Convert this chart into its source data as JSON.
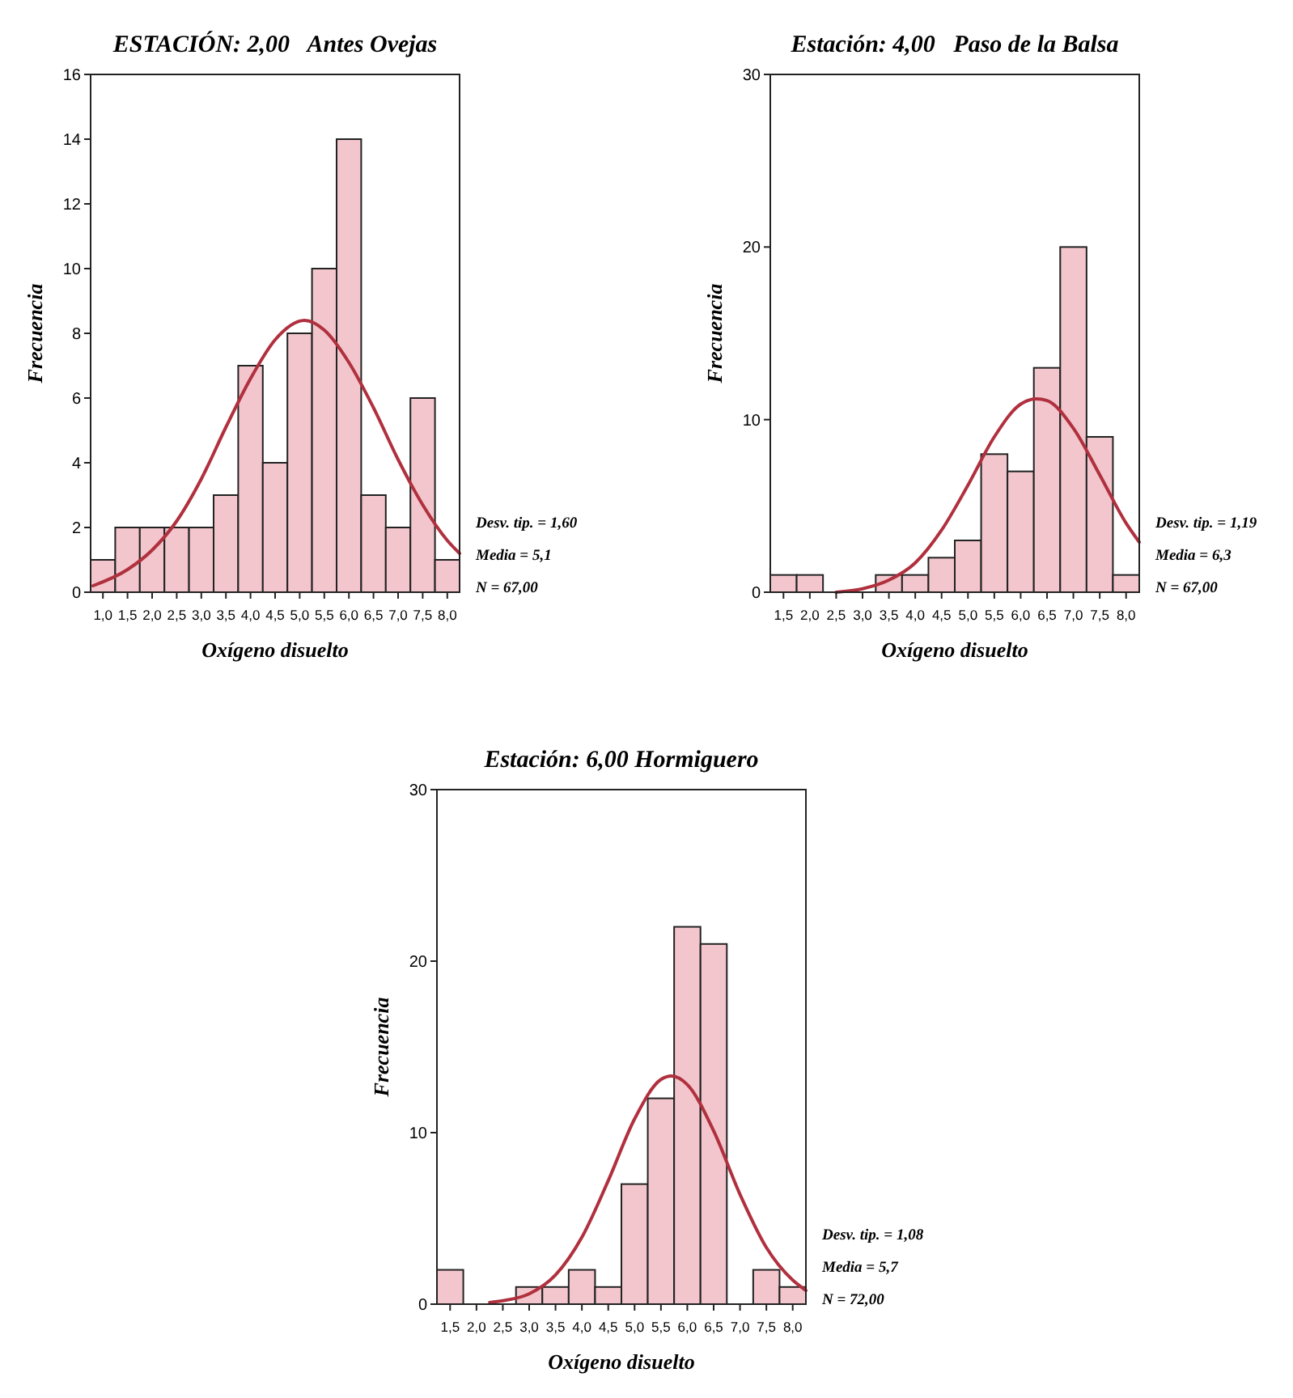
{
  "chart_data": [
    {
      "type": "histogram",
      "title": "ESTACIÓN: 2,00   Antes Ovejas",
      "xlabel": "Oxígeno disuelto",
      "ylabel": "Frecuencia",
      "bins": [
        0.75,
        1.25,
        1.75,
        2.25,
        2.75,
        3.25,
        3.75,
        4.25,
        4.75,
        5.25,
        5.75,
        6.25,
        6.75,
        7.25,
        7.75,
        8.25
      ],
      "series": [
        {
          "type": "histogram",
          "color": "#f2c6cc",
          "values": [
            1,
            2,
            2,
            2,
            2,
            3,
            7,
            4,
            8,
            10,
            14,
            3,
            2,
            6,
            1
          ]
        },
        {
          "type": "line",
          "color": "#b0303e",
          "x": [
            0.8,
            1.5,
            2.0,
            2.5,
            3.0,
            3.5,
            4.0,
            4.5,
            5.1,
            5.5,
            6.0,
            6.5,
            7.0,
            7.5,
            8.0,
            8.25
          ],
          "values": [
            0.2,
            0.7,
            1.3,
            2.2,
            3.5,
            5.1,
            6.6,
            7.8,
            8.4,
            8.1,
            7.1,
            5.7,
            4.1,
            2.7,
            1.6,
            1.2
          ]
        }
      ],
      "xlim": [
        0.75,
        8.25
      ],
      "xticks": [
        {
          "value": 1,
          "label": "1,0"
        },
        {
          "value": 1.5,
          "label": "1,5"
        },
        {
          "value": 2,
          "label": "2,0"
        },
        {
          "value": 2.5,
          "label": "2,5"
        },
        {
          "value": 3,
          "label": "3,0"
        },
        {
          "value": 3.5,
          "label": "3,5"
        },
        {
          "value": 4,
          "label": "4,0"
        },
        {
          "value": 4.5,
          "label": "4,5"
        },
        {
          "value": 5,
          "label": "5,0"
        },
        {
          "value": 5.5,
          "label": "5,5"
        },
        {
          "value": 6,
          "label": "6,0"
        },
        {
          "value": 6.5,
          "label": "6,5"
        },
        {
          "value": 7,
          "label": "7,0"
        },
        {
          "value": 7.5,
          "label": "7,5"
        },
        {
          "value": 8,
          "label": "8,0"
        }
      ],
      "ylim": [
        0,
        16
      ],
      "yticks": [
        0,
        2,
        4,
        6,
        8,
        10,
        12,
        14,
        16
      ],
      "annotations": [
        "Desv. tip. = 1,60",
        "Media = 5,1",
        "N = 67,00"
      ]
    },
    {
      "type": "histogram",
      "title": "Estación: 4,00   Paso de la Balsa",
      "xlabel": "Oxígeno disuelto",
      "ylabel": "Frecuencia",
      "bins": [
        1.25,
        1.75,
        2.25,
        2.75,
        3.25,
        3.75,
        4.25,
        4.75,
        5.25,
        5.75,
        6.25,
        6.75,
        7.25,
        7.75,
        8.25
      ],
      "series": [
        {
          "type": "histogram",
          "color": "#f2c6cc",
          "values": [
            1,
            1,
            0,
            0,
            1,
            1,
            2,
            3,
            8,
            7,
            13,
            20,
            9,
            1
          ]
        },
        {
          "type": "line",
          "color": "#b0303e",
          "x": [
            2.5,
            3.0,
            3.5,
            4.0,
            4.5,
            5.0,
            5.5,
            6.0,
            6.3,
            6.5,
            7.0,
            7.5,
            8.0,
            8.25
          ],
          "values": [
            0,
            0.2,
            0.7,
            1.7,
            3.6,
            6.2,
            9,
            10.9,
            11.2,
            11.1,
            9.5,
            6.8,
            4,
            2.9
          ]
        }
      ],
      "xlim": [
        1.25,
        8.25
      ],
      "xticks": [
        {
          "value": 1.5,
          "label": "1,5"
        },
        {
          "value": 2,
          "label": "2,0"
        },
        {
          "value": 2.5,
          "label": "2,5"
        },
        {
          "value": 3,
          "label": "3,0"
        },
        {
          "value": 3.5,
          "label": "3,5"
        },
        {
          "value": 4,
          "label": "4,0"
        },
        {
          "value": 4.5,
          "label": "4,5"
        },
        {
          "value": 5,
          "label": "5,0"
        },
        {
          "value": 5.5,
          "label": "5,5"
        },
        {
          "value": 6,
          "label": "6,0"
        },
        {
          "value": 6.5,
          "label": "6,5"
        },
        {
          "value": 7,
          "label": "7,0"
        },
        {
          "value": 7.5,
          "label": "7,5"
        },
        {
          "value": 8,
          "label": "8,0"
        }
      ],
      "ylim": [
        0,
        30
      ],
      "yticks": [
        0,
        10,
        20,
        30
      ],
      "annotations": [
        "Desv. tip. = 1,19",
        "Media = 6,3",
        "N = 67,00"
      ]
    },
    {
      "type": "histogram",
      "title": "Estación: 6,00 Hormiguero",
      "xlabel": "Oxígeno disuelto",
      "ylabel": "Frecuencia",
      "bins": [
        1.25,
        1.75,
        2.25,
        2.75,
        3.25,
        3.75,
        4.25,
        4.75,
        5.25,
        5.75,
        6.25,
        6.75,
        7.25,
        7.75,
        8.25
      ],
      "series": [
        {
          "type": "histogram",
          "color": "#f2c6cc",
          "values": [
            2,
            0,
            0,
            1,
            1,
            2,
            1,
            7,
            12,
            22,
            21,
            0,
            2,
            1
          ]
        },
        {
          "type": "line",
          "color": "#b0303e",
          "x": [
            2.25,
            2.5,
            3.0,
            3.5,
            4.0,
            4.5,
            5.0,
            5.5,
            5.7,
            6.0,
            6.5,
            7.0,
            7.5,
            8.0,
            8.25
          ],
          "values": [
            0.1,
            0.2,
            0.6,
            1.7,
            3.9,
            7.2,
            10.8,
            13.1,
            13.3,
            12.8,
            10.1,
            6.4,
            3.3,
            1.4,
            0.8
          ]
        }
      ],
      "xlim": [
        1.25,
        8.25
      ],
      "xticks": [
        {
          "value": 1.5,
          "label": "1,5"
        },
        {
          "value": 2,
          "label": "2,0"
        },
        {
          "value": 2.5,
          "label": "2,5"
        },
        {
          "value": 3,
          "label": "3,0"
        },
        {
          "value": 3.5,
          "label": "3,5"
        },
        {
          "value": 4,
          "label": "4,0"
        },
        {
          "value": 4.5,
          "label": "4,5"
        },
        {
          "value": 5,
          "label": "5,0"
        },
        {
          "value": 5.5,
          "label": "5,5"
        },
        {
          "value": 6,
          "label": "6,0"
        },
        {
          "value": 6.5,
          "label": "6,5"
        },
        {
          "value": 7,
          "label": "7,0"
        },
        {
          "value": 7.5,
          "label": "7,5"
        },
        {
          "value": 8,
          "label": "8,0"
        }
      ],
      "ylim": [
        0,
        30
      ],
      "yticks": [
        0,
        10,
        20,
        30
      ],
      "annotations": [
        "Desv. tip. = 1,08",
        "Media = 5,7",
        "N = 72,00"
      ]
    }
  ]
}
